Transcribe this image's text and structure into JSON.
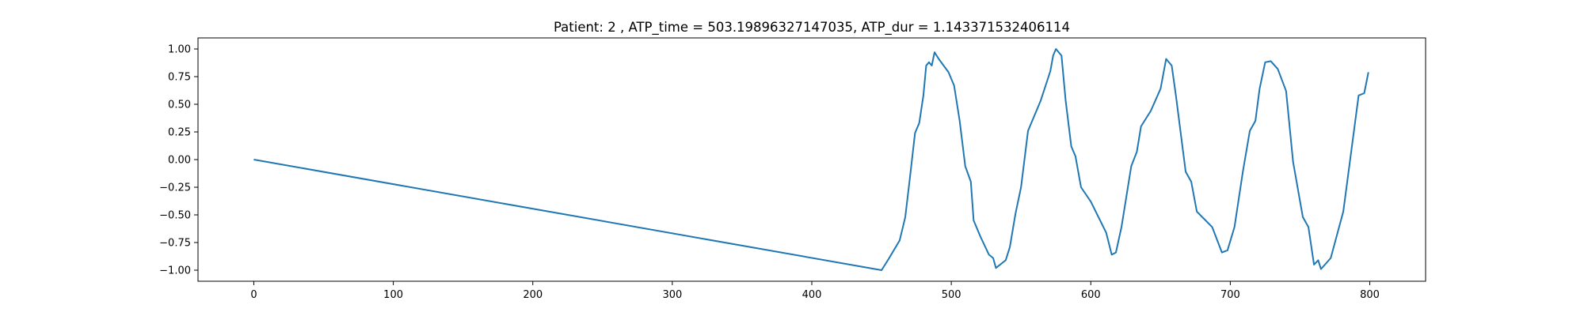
{
  "chart_data": {
    "type": "line",
    "title": "Patient: 2 , ATP_time = 503.19896327147035, ATP_dur = 1.143371532406114",
    "color": "#1f77b4",
    "x": [
      0,
      450,
      455,
      463,
      467,
      470,
      474,
      477,
      480,
      482,
      484,
      486,
      488,
      491,
      498,
      502,
      506,
      510,
      514,
      516,
      521,
      527,
      530,
      532,
      539,
      542,
      546,
      550,
      555,
      564,
      571,
      573,
      575,
      579,
      582,
      586,
      589,
      593,
      600,
      611,
      615,
      618,
      622,
      629,
      633,
      636,
      643,
      650,
      654,
      658,
      661,
      668,
      672,
      676,
      687,
      694,
      698,
      703,
      709,
      714,
      718,
      721,
      725,
      729,
      734,
      740,
      745,
      752,
      756,
      760,
      763,
      765,
      772,
      781,
      792,
      796,
      799
    ],
    "values": [
      0,
      -1,
      -0.9,
      -0.73,
      -0.52,
      -0.2,
      0.24,
      0.33,
      0.58,
      0.85,
      0.88,
      0.85,
      0.97,
      0.91,
      0.79,
      0.67,
      0.35,
      -0.06,
      -0.2,
      -0.55,
      -0.7,
      -0.86,
      -0.89,
      -0.98,
      -0.91,
      -0.79,
      -0.49,
      -0.25,
      0.26,
      0.53,
      0.8,
      0.94,
      1.0,
      0.94,
      0.53,
      0.12,
      0.03,
      -0.25,
      -0.38,
      -0.66,
      -0.86,
      -0.84,
      -0.61,
      -0.06,
      0.07,
      0.3,
      0.44,
      0.64,
      0.91,
      0.85,
      0.58,
      -0.11,
      -0.2,
      -0.47,
      -0.61,
      -0.84,
      -0.82,
      -0.61,
      -0.11,
      0.26,
      0.35,
      0.64,
      0.88,
      0.89,
      0.82,
      0.62,
      -0.02,
      -0.52,
      -0.61,
      -0.95,
      -0.91,
      -0.99,
      -0.89,
      -0.47,
      0.58,
      0.6,
      0.79
    ],
    "xlim": [
      -40,
      840
    ],
    "xticks": [
      0,
      100,
      200,
      300,
      400,
      500,
      600,
      700,
      800
    ],
    "ylim": [
      -1.1,
      1.1
    ],
    "yticks": [
      {
        "value": -1,
        "label": "−1.00"
      },
      {
        "value": -0.75,
        "label": "−0.75"
      },
      {
        "value": -0.5,
        "label": "−0.50"
      },
      {
        "value": -0.25,
        "label": "−0.25"
      },
      {
        "value": 0,
        "label": "0.00"
      },
      {
        "value": 0.25,
        "label": "0.25"
      },
      {
        "value": 0.5,
        "label": "0.50"
      },
      {
        "value": 0.75,
        "label": "0.75"
      },
      {
        "value": 1,
        "label": "1.00"
      }
    ]
  }
}
